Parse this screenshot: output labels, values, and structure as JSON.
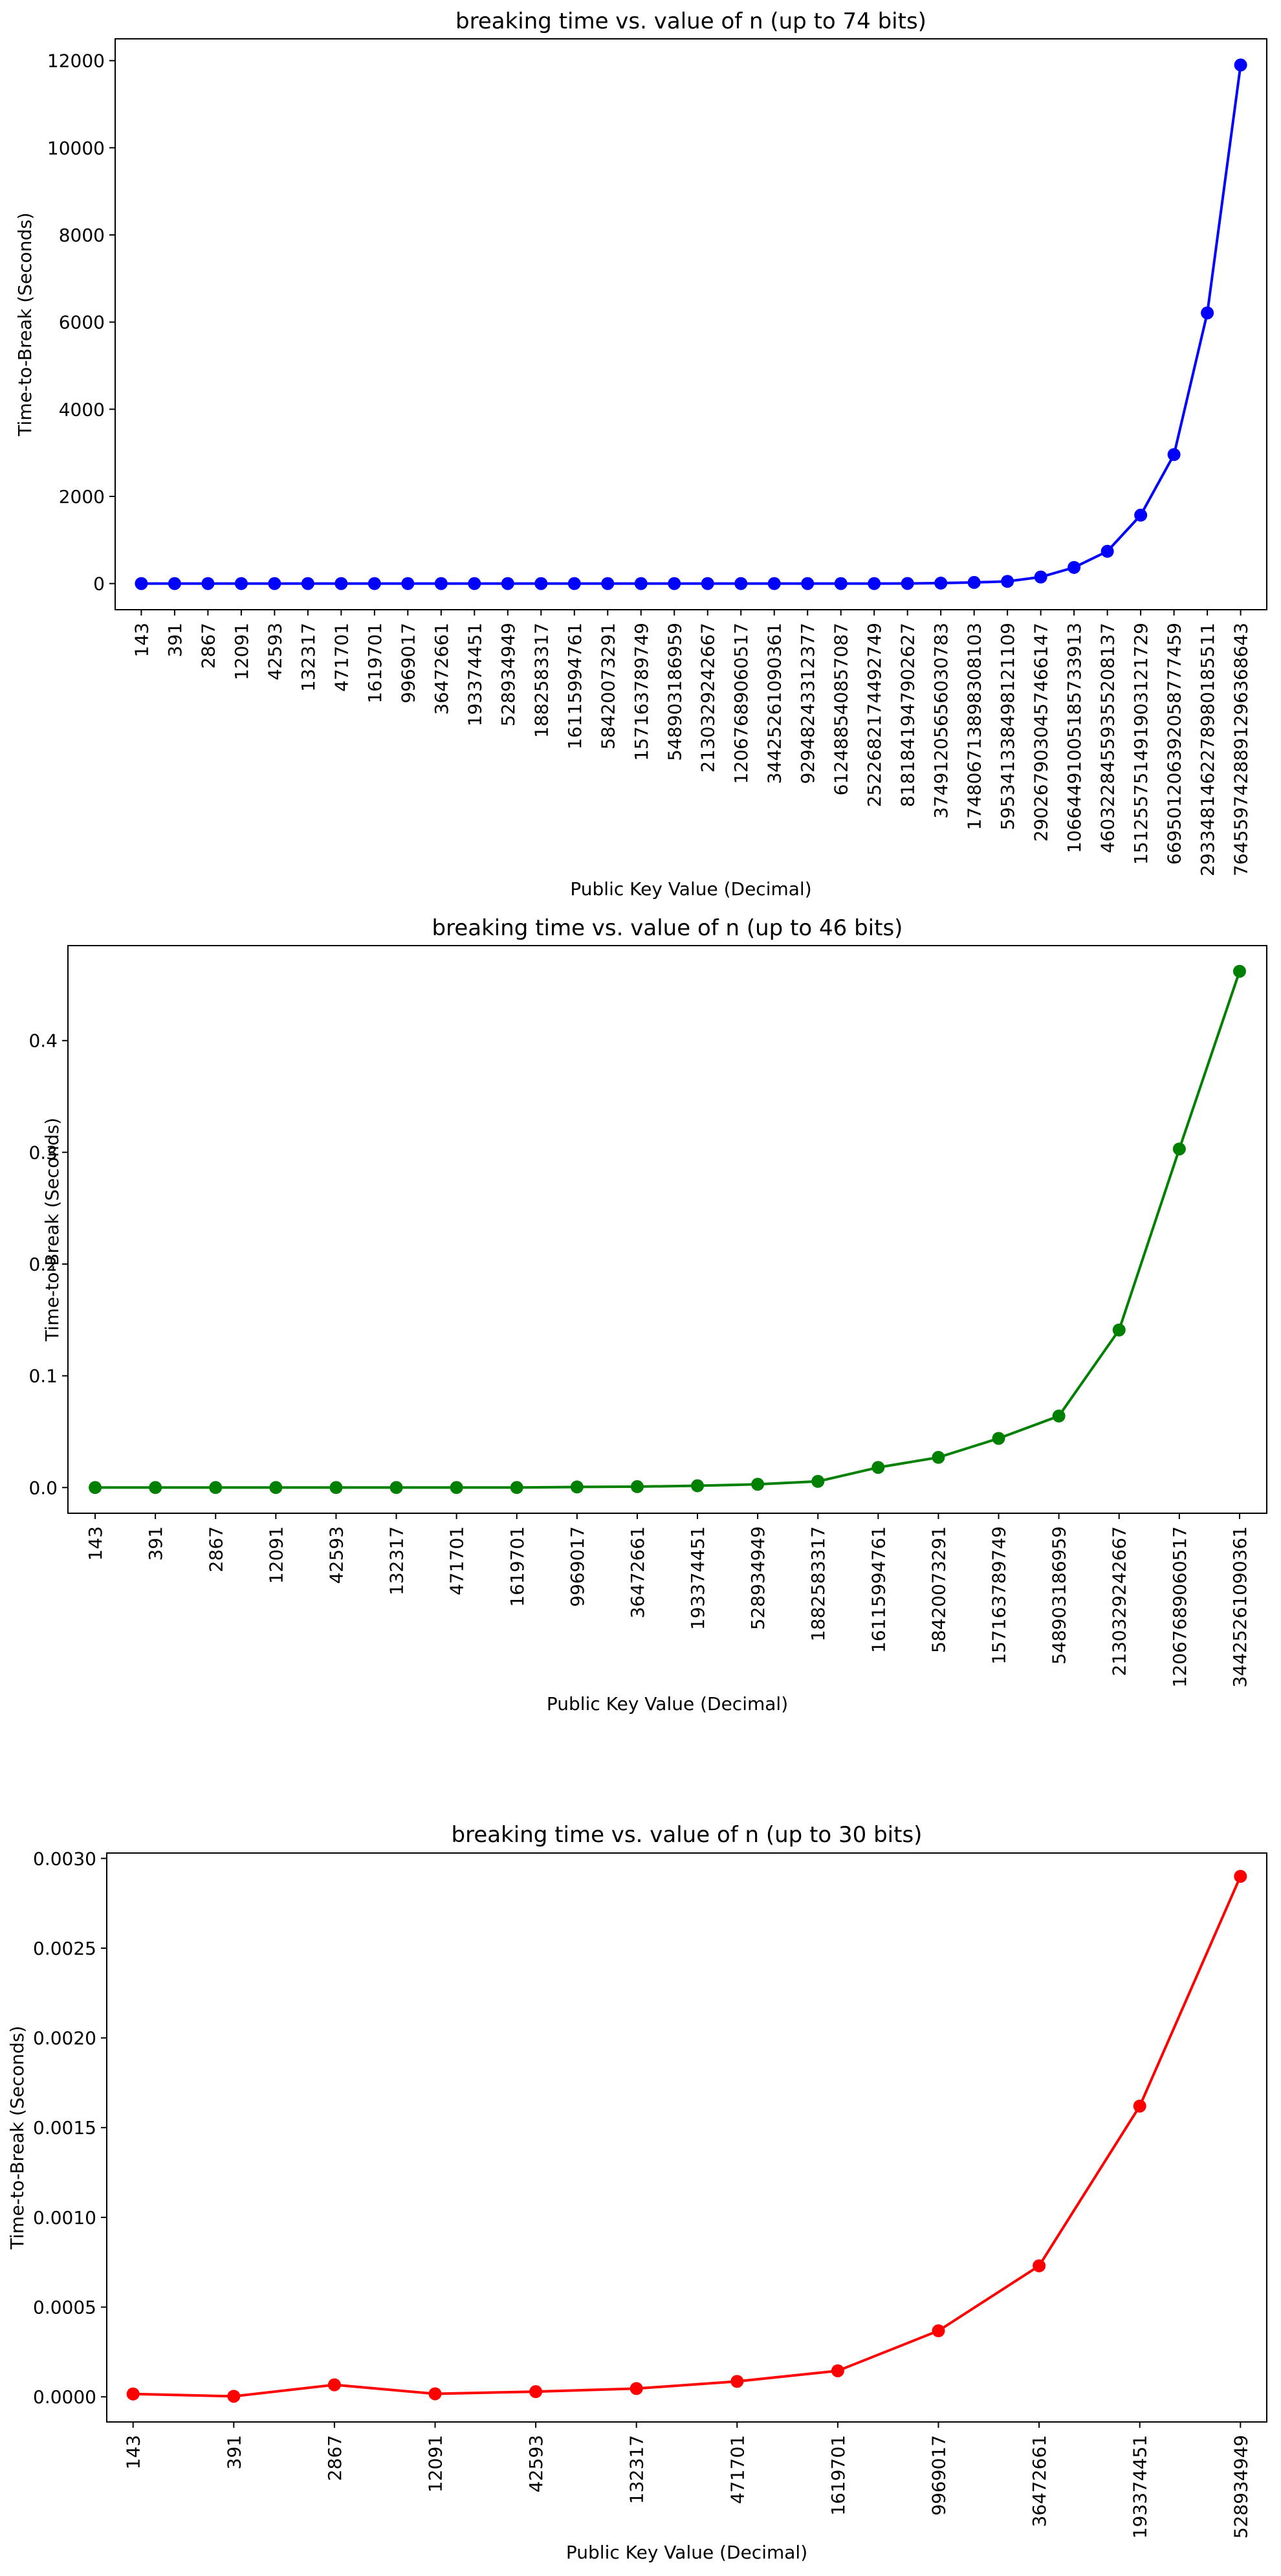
{
  "chart_data": [
    {
      "type": "line",
      "title": "breaking time vs. value of n (up to 74  bits)",
      "xlabel": "Public Key Value (Decimal)",
      "ylabel": "Time-to-Break (Seconds)",
      "color": "#0000ff",
      "ylim": [
        -600,
        12500
      ],
      "yticks": [
        0,
        2000,
        4000,
        6000,
        8000,
        10000,
        12000
      ],
      "ytick_labels": [
        "0",
        "2000",
        "4000",
        "6000",
        "8000",
        "10000",
        "12000"
      ],
      "categories": [
        "143",
        "391",
        "2867",
        "12091",
        "42593",
        "132317",
        "471701",
        "1619701",
        "9969017",
        "36472661",
        "193374451",
        "528934949",
        "1882583317",
        "16115994761",
        "58420073291",
        "157163789749",
        "548903186959",
        "2130329242667",
        "12067689060517",
        "34425261090361",
        "92948243312377",
        "612488540857087",
        "2522682174492749",
        "8181841947902627",
        "37491205656030783",
        "174806713898308103",
        "595341338498121109",
        "2902679030457466147",
        "10664491005185733913",
        "46032284559355208137",
        "151255751491903121729",
        "669501206392058777459",
        "2933481462278980185511",
        "7645597428891296368643"
      ],
      "values": [
        0,
        0,
        0,
        0,
        0,
        0,
        0,
        0,
        0,
        0,
        0,
        0,
        0,
        0,
        0,
        0,
        0,
        0,
        0,
        0,
        0,
        0,
        0,
        2,
        10,
        25,
        50,
        150,
        370,
        740,
        1570,
        2960,
        6210,
        11900
      ]
    },
    {
      "type": "line",
      "title": "breaking time vs. value of n (up to 46 bits)",
      "xlabel": "Public Key Value (Decimal)",
      "ylabel": "Time-to-Break (Seconds)",
      "color": "#008000",
      "ylim": [
        -0.023,
        0.485
      ],
      "yticks": [
        0.0,
        0.1,
        0.2,
        0.3,
        0.4
      ],
      "ytick_labels": [
        "0.0",
        "0.1",
        "0.2",
        "0.3",
        "0.4"
      ],
      "categories": [
        "143",
        "391",
        "2867",
        "12091",
        "42593",
        "132317",
        "471701",
        "1619701",
        "9969017",
        "36472661",
        "193374451",
        "528934949",
        "1882583317",
        "16115994761",
        "58420073291",
        "157163789749",
        "548903186959",
        "2130329242667",
        "12067689060517",
        "34425261090361"
      ],
      "values": [
        0.0,
        0.0,
        0.0,
        0.0,
        0.0,
        0.0,
        0.0,
        0.0,
        0.0005,
        0.0008,
        0.0016,
        0.0029,
        0.0055,
        0.018,
        0.027,
        0.044,
        0.064,
        0.141,
        0.303,
        0.462
      ]
    },
    {
      "type": "line",
      "title": "breaking time vs. value of n (up to 30 bits)",
      "xlabel": "Public Key Value (Decimal)",
      "ylabel": "Time-to-Break (Seconds)",
      "color": "#ff0000",
      "ylim": [
        -0.00014,
        0.00303
      ],
      "yticks": [
        0.0,
        0.0005,
        0.001,
        0.0015,
        0.002,
        0.0025,
        0.003
      ],
      "ytick_labels": [
        "0.0000",
        "0.0005",
        "0.0010",
        "0.0015",
        "0.0020",
        "0.0025",
        "0.0030"
      ],
      "categories": [
        "143",
        "391",
        "2867",
        "12091",
        "42593",
        "132317",
        "471701",
        "1619701",
        "9969017",
        "36472661",
        "193374451",
        "528934949"
      ],
      "values": [
        1.6e-05,
        3e-06,
        6.7e-05,
        1.7e-05,
        2.9e-05,
        4.6e-05,
        8.6e-05,
        0.000145,
        0.000368,
        0.00073,
        0.00162,
        0.0029
      ]
    }
  ]
}
